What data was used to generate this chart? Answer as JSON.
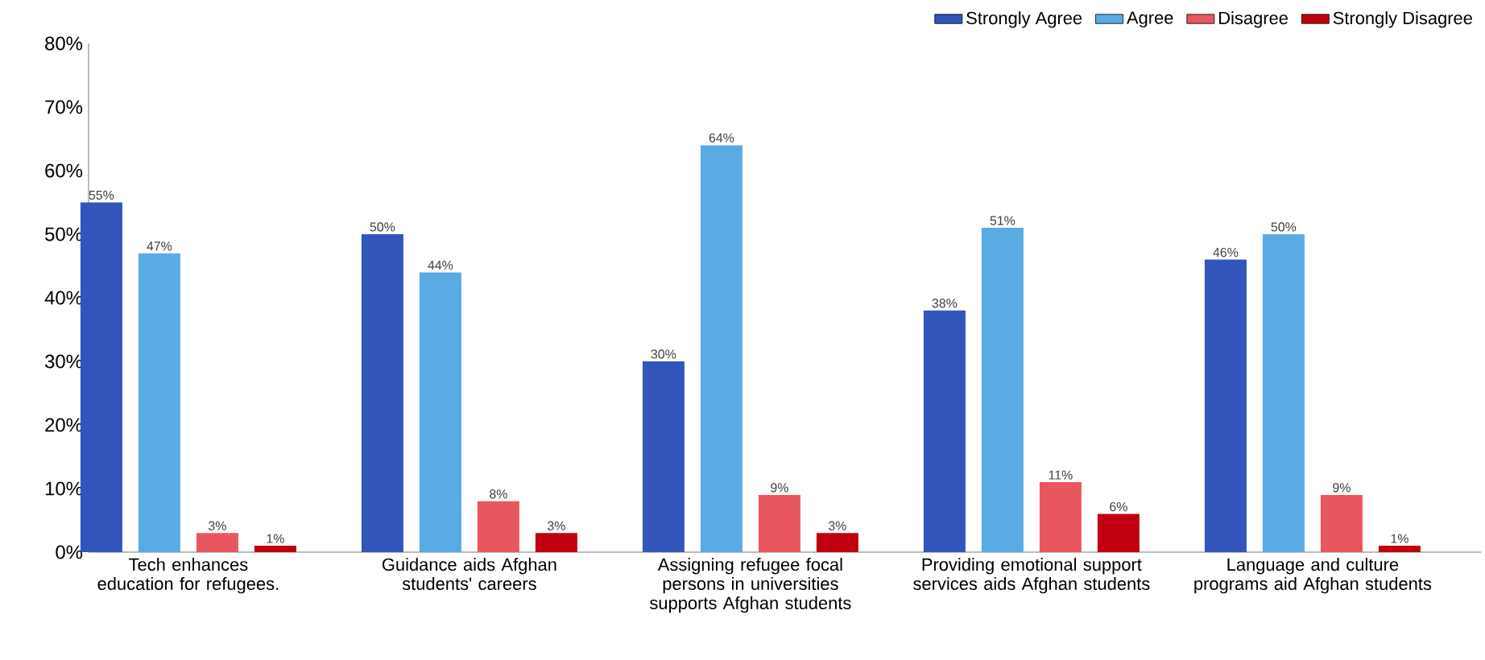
{
  "chart_data": {
    "type": "bar",
    "categories": [
      "Tech enhances education for refugees.",
      "Guidance aids Afghan students' careers",
      "Assigning refugee focal persons in universities supports Afghan students",
      "Providing emotional support services aids Afghan students",
      "Language and culture programs aid Afghan students"
    ],
    "series": [
      {
        "name": "Strongly Agree",
        "color": "#3355bb",
        "values": [
          55,
          50,
          30,
          38,
          46
        ],
        "value_labels": [
          "55%",
          "50%",
          "30%",
          "38%",
          "46%"
        ]
      },
      {
        "name": "Agree",
        "color": "#5aabe3",
        "values": [
          47,
          44,
          64,
          51,
          50
        ],
        "value_labels": [
          "47%",
          "44%",
          "64%",
          "51%",
          "50%"
        ]
      },
      {
        "name": "Disagree",
        "color": "#e8575f",
        "values": [
          3,
          8,
          9,
          11,
          9
        ],
        "value_labels": [
          "3%",
          "8%",
          "9%",
          "11%",
          "9%"
        ]
      },
      {
        "name": "Strongly Disagree",
        "color": "#c00010",
        "values": [
          1,
          3,
          3,
          6,
          1
        ],
        "value_labels": [
          "1%",
          "3%",
          "3%",
          "6%",
          "1%"
        ]
      }
    ],
    "ylim": [
      0,
      80
    ],
    "yticks": [
      {
        "value": 0,
        "label": "0%"
      },
      {
        "value": 10,
        "label": "10%"
      },
      {
        "value": 20,
        "label": "20%"
      },
      {
        "value": 30,
        "label": "30%"
      },
      {
        "value": 40,
        "label": "40%"
      },
      {
        "value": 50,
        "label": "50%"
      },
      {
        "value": 60,
        "label": "60%"
      },
      {
        "value": 70,
        "label": "70%"
      },
      {
        "value": 80,
        "label": "80%"
      }
    ],
    "grid": false,
    "legend": "top right"
  }
}
